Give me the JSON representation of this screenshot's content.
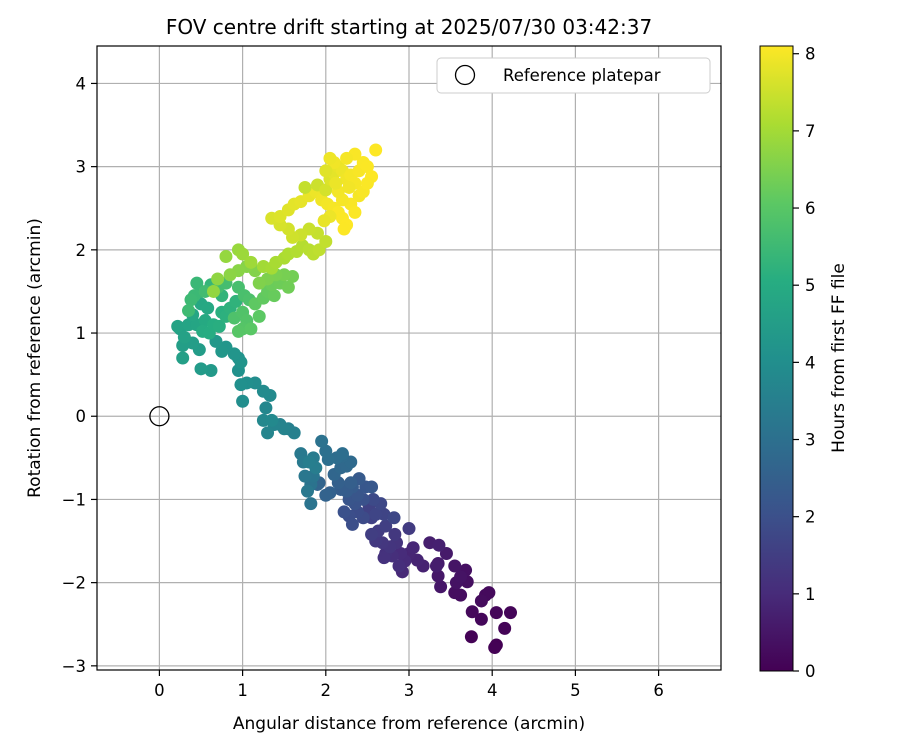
{
  "chart_data": {
    "type": "scatter",
    "title": "FOV centre drift starting at 2025/07/30 03:42:37",
    "xlabel": "Angular distance from reference (arcmin)",
    "ylabel": "Rotation from reference (arcmin)",
    "xlim": [
      -0.75,
      6.75
    ],
    "ylim": [
      -3.05,
      4.45
    ],
    "xticks": [
      0,
      1,
      2,
      3,
      4,
      5,
      6
    ],
    "yticks": [
      -3,
      -2,
      -1,
      0,
      1,
      2,
      3,
      4
    ],
    "grid": true,
    "legend": {
      "position": "top-right",
      "entries": [
        "Reference platepar"
      ]
    },
    "reference_point": {
      "label": "Reference platepar",
      "x": 0,
      "y": 0
    },
    "colorbar": {
      "label": "Hours from first FF file",
      "range": [
        0,
        8.1
      ],
      "ticks": [
        0,
        1,
        2,
        3,
        4,
        5,
        6,
        7,
        8
      ],
      "colormap": "viridis"
    },
    "points": [
      [
        4.05,
        -2.75,
        0.0
      ],
      [
        4.03,
        -2.78,
        0.02
      ],
      [
        3.75,
        -2.65,
        0.05
      ],
      [
        4.15,
        -2.55,
        0.08
      ],
      [
        4.22,
        -2.36,
        0.1
      ],
      [
        4.05,
        -2.36,
        0.12
      ],
      [
        3.87,
        -2.44,
        0.15
      ],
      [
        3.76,
        -2.35,
        0.18
      ],
      [
        3.92,
        -2.15,
        0.2
      ],
      [
        3.96,
        -2.12,
        0.22
      ],
      [
        3.87,
        -2.22,
        0.25
      ],
      [
        3.62,
        -2.15,
        0.28
      ],
      [
        3.55,
        -2.12,
        0.3
      ],
      [
        3.7,
        -1.99,
        0.33
      ],
      [
        3.68,
        -1.85,
        0.36
      ],
      [
        3.57,
        -2.0,
        0.4
      ],
      [
        3.62,
        -1.93,
        0.43
      ],
      [
        3.55,
        -1.8,
        0.46
      ],
      [
        3.38,
        -2.05,
        0.5
      ],
      [
        3.35,
        -1.92,
        0.54
      ],
      [
        3.45,
        -1.65,
        0.58
      ],
      [
        3.35,
        -1.77,
        0.62
      ],
      [
        3.33,
        -1.8,
        0.66
      ],
      [
        3.25,
        -1.52,
        0.7
      ],
      [
        3.36,
        -1.55,
        0.74
      ],
      [
        3.17,
        -1.8,
        0.78
      ],
      [
        3.1,
        -1.73,
        0.82
      ],
      [
        3.0,
        -1.65,
        0.86
      ],
      [
        3.05,
        -1.58,
        0.9
      ],
      [
        2.92,
        -1.87,
        0.94
      ],
      [
        2.95,
        -1.74,
        0.98
      ],
      [
        2.9,
        -1.65,
        1.02
      ],
      [
        2.88,
        -1.8,
        1.06
      ],
      [
        2.8,
        -1.68,
        1.1
      ],
      [
        2.72,
        -1.65,
        1.14
      ],
      [
        2.7,
        -1.7,
        1.18
      ],
      [
        2.85,
        -1.52,
        1.22
      ],
      [
        2.77,
        -1.57,
        1.26
      ],
      [
        2.68,
        -1.52,
        1.3
      ],
      [
        2.83,
        -1.42,
        1.34
      ],
      [
        2.6,
        -1.5,
        1.38
      ],
      [
        3.0,
        -1.35,
        1.42
      ],
      [
        2.63,
        -1.38,
        1.46
      ],
      [
        2.55,
        -1.42,
        1.5
      ],
      [
        2.72,
        -1.32,
        1.54
      ],
      [
        2.55,
        -1.22,
        1.58
      ],
      [
        2.52,
        -1.1,
        1.62
      ],
      [
        2.7,
        -1.18,
        1.66
      ],
      [
        2.6,
        -1.18,
        1.7
      ],
      [
        2.82,
        -1.22,
        1.74
      ],
      [
        2.66,
        -1.05,
        1.78
      ],
      [
        2.57,
        -1.0,
        1.82
      ],
      [
        2.45,
        -1.22,
        1.86
      ],
      [
        2.38,
        -1.15,
        1.9
      ],
      [
        2.28,
        -1.2,
        1.94
      ],
      [
        2.32,
        -1.3,
        1.98
      ],
      [
        2.22,
        -1.15,
        2.02
      ],
      [
        2.45,
        -1.0,
        2.06
      ],
      [
        2.35,
        -1.05,
        2.1
      ],
      [
        2.28,
        -1.0,
        2.14
      ],
      [
        2.38,
        -0.95,
        2.18
      ],
      [
        2.48,
        -0.85,
        2.22
      ],
      [
        2.55,
        -0.85,
        2.26
      ],
      [
        2.4,
        -0.75,
        2.3
      ],
      [
        2.32,
        -0.85,
        2.34
      ],
      [
        2.25,
        -0.9,
        2.38
      ],
      [
        2.18,
        -0.88,
        2.42
      ],
      [
        2.3,
        -0.8,
        2.46
      ],
      [
        2.15,
        -0.8,
        2.5
      ],
      [
        2.05,
        -0.92,
        2.54
      ],
      [
        2.0,
        -0.95,
        2.58
      ],
      [
        1.92,
        -0.8,
        2.62
      ],
      [
        1.9,
        -0.82,
        2.66
      ],
      [
        2.1,
        -0.7,
        2.7
      ],
      [
        2.18,
        -0.62,
        2.74
      ],
      [
        2.25,
        -0.6,
        2.78
      ],
      [
        2.3,
        -0.55,
        2.82
      ],
      [
        2.2,
        -0.48,
        2.86
      ],
      [
        2.13,
        -0.5,
        2.9
      ],
      [
        2.2,
        -0.45,
        2.94
      ],
      [
        2.03,
        -0.52,
        2.98
      ],
      [
        2.0,
        -0.42,
        3.02
      ],
      [
        1.95,
        -0.3,
        3.06
      ],
      [
        1.82,
        -0.82,
        3.1
      ],
      [
        1.82,
        -1.05,
        3.14
      ],
      [
        1.85,
        -0.72,
        3.18
      ],
      [
        1.75,
        -0.72,
        3.22
      ],
      [
        1.78,
        -0.9,
        3.26
      ],
      [
        1.7,
        -0.45,
        3.3
      ],
      [
        1.73,
        -0.55,
        3.34
      ],
      [
        1.85,
        -0.5,
        3.38
      ],
      [
        1.88,
        -0.62,
        3.42
      ],
      [
        1.8,
        -0.55,
        3.46
      ],
      [
        1.55,
        -0.15,
        3.5
      ],
      [
        1.62,
        -0.2,
        3.54
      ],
      [
        1.45,
        -0.1,
        3.58
      ],
      [
        1.5,
        -0.15,
        3.62
      ],
      [
        1.38,
        -0.1,
        3.66
      ],
      [
        1.3,
        -0.2,
        3.7
      ],
      [
        1.28,
        0.1,
        3.74
      ],
      [
        1.25,
        -0.05,
        3.78
      ],
      [
        1.35,
        -0.05,
        3.82
      ],
      [
        1.33,
        0.25,
        3.86
      ],
      [
        1.25,
        0.3,
        3.9
      ],
      [
        1.15,
        0.4,
        3.94
      ],
      [
        1.0,
        0.18,
        3.98
      ],
      [
        1.05,
        0.4,
        4.02
      ],
      [
        0.98,
        0.38,
        4.06
      ],
      [
        0.95,
        0.55,
        4.1
      ],
      [
        0.95,
        0.7,
        4.14
      ],
      [
        0.98,
        0.65,
        4.18
      ],
      [
        0.9,
        0.75,
        4.22
      ],
      [
        0.8,
        0.83,
        4.26
      ],
      [
        0.75,
        0.78,
        4.3
      ],
      [
        0.68,
        0.9,
        4.34
      ],
      [
        0.62,
        0.55,
        4.38
      ],
      [
        0.5,
        0.57,
        4.42
      ],
      [
        0.48,
        0.8,
        4.46
      ],
      [
        0.4,
        0.88,
        4.5
      ],
      [
        0.28,
        0.85,
        4.54
      ],
      [
        0.28,
        0.7,
        4.58
      ],
      [
        0.25,
        1.05,
        4.62
      ],
      [
        0.3,
        0.95,
        4.66
      ],
      [
        0.22,
        1.08,
        4.7
      ],
      [
        0.35,
        1.1,
        4.74
      ],
      [
        0.45,
        1.1,
        4.78
      ],
      [
        0.4,
        1.22,
        4.82
      ],
      [
        0.5,
        1.35,
        4.86
      ],
      [
        0.58,
        1.3,
        4.9
      ],
      [
        0.55,
        1.15,
        4.94
      ],
      [
        0.52,
        1.02,
        4.98
      ],
      [
        0.6,
        1.0,
        5.02
      ],
      [
        0.65,
        1.1,
        5.06
      ],
      [
        0.72,
        1.08,
        5.1
      ],
      [
        0.75,
        1.25,
        5.14
      ],
      [
        0.8,
        1.2,
        5.18
      ],
      [
        0.85,
        1.3,
        5.22
      ],
      [
        0.92,
        1.38,
        5.26
      ],
      [
        0.75,
        1.45,
        5.3
      ],
      [
        0.62,
        1.58,
        5.34
      ],
      [
        0.5,
        1.5,
        5.38
      ],
      [
        0.45,
        1.6,
        5.42
      ],
      [
        0.42,
        1.45,
        5.46
      ],
      [
        0.38,
        1.4,
        5.5
      ],
      [
        0.35,
        1.27,
        5.54
      ],
      [
        0.55,
        1.5,
        5.58
      ],
      [
        0.7,
        1.55,
        5.62
      ],
      [
        0.8,
        1.6,
        5.66
      ],
      [
        0.95,
        1.55,
        5.7
      ],
      [
        1.02,
        1.45,
        5.74
      ],
      [
        1.08,
        1.4,
        5.78
      ],
      [
        0.9,
        1.18,
        5.82
      ],
      [
        1.0,
        1.25,
        5.86
      ],
      [
        1.05,
        1.15,
        5.9
      ],
      [
        1.0,
        1.05,
        5.94
      ],
      [
        0.95,
        1.02,
        5.98
      ],
      [
        1.1,
        1.05,
        6.02
      ],
      [
        1.2,
        1.2,
        6.06
      ],
      [
        1.15,
        1.35,
        6.1
      ],
      [
        1.25,
        1.42,
        6.14
      ],
      [
        1.3,
        1.5,
        6.18
      ],
      [
        1.38,
        1.45,
        6.22
      ],
      [
        1.35,
        1.58,
        6.26
      ],
      [
        1.45,
        1.6,
        6.3
      ],
      [
        1.55,
        1.55,
        6.34
      ],
      [
        1.6,
        1.68,
        6.38
      ],
      [
        1.5,
        1.7,
        6.42
      ],
      [
        1.4,
        1.7,
        6.46
      ],
      [
        1.3,
        1.65,
        6.5
      ],
      [
        1.2,
        1.6,
        6.54
      ],
      [
        1.15,
        1.75,
        6.58
      ],
      [
        1.05,
        1.8,
        6.62
      ],
      [
        0.95,
        1.75,
        6.66
      ],
      [
        0.85,
        1.7,
        6.7
      ],
      [
        0.7,
        1.65,
        6.74
      ],
      [
        0.65,
        1.5,
        6.78
      ],
      [
        0.8,
        1.92,
        6.82
      ],
      [
        0.95,
        2.0,
        6.86
      ],
      [
        1.0,
        1.95,
        6.9
      ],
      [
        1.1,
        1.85,
        6.94
      ],
      [
        1.25,
        1.8,
        6.98
      ],
      [
        1.35,
        1.78,
        7.02
      ],
      [
        1.4,
        1.85,
        7.06
      ],
      [
        1.5,
        1.9,
        7.1
      ],
      [
        1.55,
        1.95,
        7.14
      ],
      [
        1.65,
        1.98,
        7.18
      ],
      [
        1.72,
        2.05,
        7.22
      ],
      [
        1.8,
        2.0,
        7.26
      ],
      [
        1.85,
        1.95,
        7.3
      ],
      [
        1.92,
        2.0,
        7.34
      ],
      [
        2.0,
        2.1,
        7.38
      ],
      [
        1.9,
        2.2,
        7.42
      ],
      [
        1.8,
        2.25,
        7.46
      ],
      [
        1.7,
        2.18,
        7.5
      ],
      [
        1.6,
        2.15,
        7.54
      ],
      [
        1.55,
        2.25,
        7.58
      ],
      [
        1.45,
        2.3,
        7.62
      ],
      [
        1.35,
        2.38,
        7.66
      ],
      [
        1.45,
        2.4,
        7.7
      ],
      [
        1.55,
        2.48,
        7.74
      ],
      [
        1.62,
        2.55,
        7.78
      ],
      [
        1.7,
        2.58,
        7.82
      ],
      [
        1.8,
        2.65,
        7.86
      ],
      [
        1.88,
        2.7,
        7.9
      ],
      [
        1.95,
        2.6,
        7.94
      ],
      [
        2.02,
        2.55,
        7.98
      ],
      [
        2.1,
        2.5,
        8.02
      ],
      [
        2.15,
        2.45,
        8.06
      ],
      [
        2.2,
        2.38,
        8.08
      ],
      [
        2.25,
        2.3,
        8.1
      ],
      [
        1.75,
        2.75,
        7.4
      ],
      [
        1.9,
        2.78,
        7.5
      ],
      [
        2.0,
        2.72,
        7.6
      ],
      [
        2.05,
        2.85,
        7.7
      ],
      [
        2.1,
        2.92,
        7.8
      ],
      [
        2.15,
        3.0,
        7.85
      ],
      [
        2.2,
        2.95,
        7.9
      ],
      [
        2.25,
        2.85,
        7.95
      ],
      [
        2.3,
        2.9,
        8.0
      ],
      [
        2.35,
        2.8,
        8.02
      ],
      [
        2.4,
        2.95,
        8.04
      ],
      [
        2.45,
        3.05,
        8.06
      ],
      [
        2.5,
        3.0,
        8.08
      ],
      [
        2.55,
        2.88,
        8.1
      ],
      [
        2.6,
        3.2,
        8.1
      ],
      [
        2.35,
        3.15,
        8.05
      ],
      [
        2.25,
        3.1,
        8.0
      ],
      [
        2.1,
        3.05,
        7.95
      ],
      [
        2.05,
        3.1,
        7.92
      ],
      [
        2.0,
        2.95,
        7.75
      ],
      [
        2.4,
        2.65,
        8.0
      ],
      [
        2.3,
        2.55,
        8.05
      ],
      [
        2.2,
        2.6,
        8.02
      ],
      [
        2.15,
        2.7,
        7.98
      ],
      [
        2.35,
        2.45,
        8.08
      ],
      [
        2.45,
        2.7,
        8.04
      ],
      [
        2.5,
        2.8,
        8.06
      ],
      [
        2.12,
        2.8,
        7.88
      ],
      [
        2.28,
        2.75,
        7.96
      ],
      [
        2.22,
        2.25,
        8.09
      ],
      [
        2.05,
        2.4,
        7.9
      ],
      [
        1.98,
        2.35,
        7.84
      ]
    ]
  }
}
